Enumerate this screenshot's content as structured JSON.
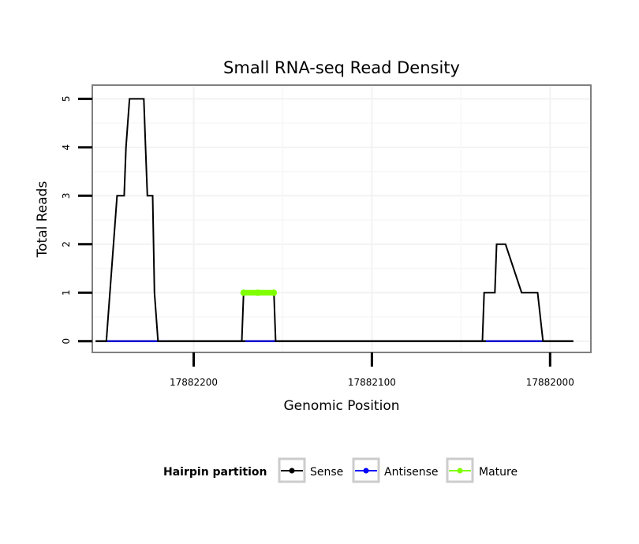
{
  "chart_data": {
    "type": "line",
    "title": "Small RNA-seq Read Density",
    "xlabel": "Genomic Position",
    "ylabel": "Total Reads",
    "x_reversed": true,
    "xlim": [
      17882256,
      17881978
    ],
    "ylim": [
      -0.2,
      5.25
    ],
    "x_ticks": [
      17882200,
      17882100,
      17882000
    ],
    "x_tick_labels": [
      "17882200",
      "17882100",
      "17882000"
    ],
    "y_ticks": [
      0,
      1,
      2,
      3,
      4,
      5
    ],
    "y_tick_labels": [
      "0",
      "1",
      "2",
      "3",
      "4",
      "5"
    ],
    "grid": true,
    "legend": {
      "title": "Hairpin partition",
      "position": "bottom",
      "entries": [
        "Sense",
        "Antisense",
        "Mature"
      ]
    },
    "series": [
      {
        "name": "Sense",
        "color": "#000000",
        "x": [
          17882255,
          17882249,
          17882243,
          17882239,
          17882238,
          17882236,
          17882234,
          17882228,
          17882227,
          17882226,
          17882223,
          17882222,
          17882220,
          17882216,
          17882190,
          17882173,
          17882172,
          17882155,
          17882154,
          17882038,
          17882037,
          17882031,
          17882030,
          17882026,
          17882025,
          17882016,
          17882015,
          17882007,
          17882004,
          17881987
        ],
        "values": [
          0,
          0,
          3,
          3,
          4,
          5,
          5,
          5,
          4,
          3,
          3,
          1,
          0,
          0,
          0,
          0,
          1,
          1,
          0,
          0,
          1,
          1,
          2,
          2,
          2,
          1,
          1,
          1,
          0,
          0
        ]
      },
      {
        "name": "Antisense",
        "color": "#0000ff",
        "x": [
          17882249,
          17882215,
          17882171,
          17882154,
          17882036,
          17882004
        ],
        "values": [
          0,
          0,
          null,
          0,
          0,
          0
        ],
        "segments": [
          [
            17882249,
            17882215
          ],
          [
            17882171,
            17882154
          ],
          [
            17882036,
            17882004
          ]
        ]
      },
      {
        "name": "Mature",
        "color": "#7fff00",
        "x": [
          17882172,
          17882164,
          17882155
        ],
        "values": [
          1,
          1,
          1
        ]
      }
    ]
  }
}
